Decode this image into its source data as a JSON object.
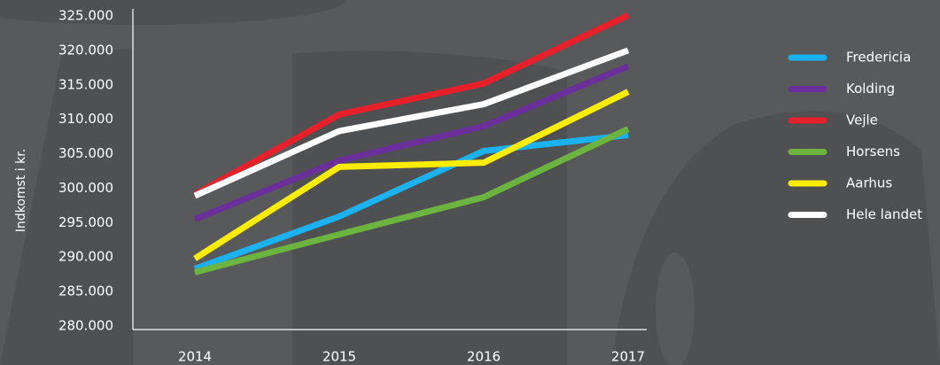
{
  "chart_data": {
    "type": "line",
    "y_label": "Indkomst i kr.",
    "categories": [
      "2014",
      "2015",
      "2016",
      "2017"
    ],
    "series": [
      {
        "name": "Fredericia",
        "color": "#1ab2f0",
        "values": [
          288300,
          295900,
          305400,
          307700
        ]
      },
      {
        "name": "Kolding",
        "color": "#6a2f9a",
        "values": [
          295500,
          304000,
          309000,
          317700
        ]
      },
      {
        "name": "Vejle",
        "color": "#e8202a",
        "values": [
          299100,
          310700,
          315200,
          325100
        ]
      },
      {
        "name": "Horsens",
        "color": "#6bb43f",
        "values": [
          287800,
          293300,
          298700,
          308600
        ]
      },
      {
        "name": "Aarhus",
        "color": "#ffed00",
        "values": [
          289800,
          303100,
          303700,
          314000
        ]
      },
      {
        "name": "Hele landet",
        "color": "#ffffff",
        "values": [
          298900,
          308300,
          312200,
          320000
        ]
      }
    ],
    "ylim": [
      280000,
      325000
    ],
    "yticks": [
      {
        "value": 280000,
        "label": "280.000"
      },
      {
        "value": 285000,
        "label": "285.000"
      },
      {
        "value": 290000,
        "label": "290.000"
      },
      {
        "value": 295000,
        "label": "295.000"
      },
      {
        "value": 300000,
        "label": "300.000"
      },
      {
        "value": 305000,
        "label": "305.000"
      },
      {
        "value": 310000,
        "label": "310.000"
      },
      {
        "value": 315000,
        "label": "315.000"
      },
      {
        "value": 320000,
        "label": "320.000"
      },
      {
        "value": 325000,
        "label": "325.000"
      }
    ],
    "legend": "right"
  }
}
